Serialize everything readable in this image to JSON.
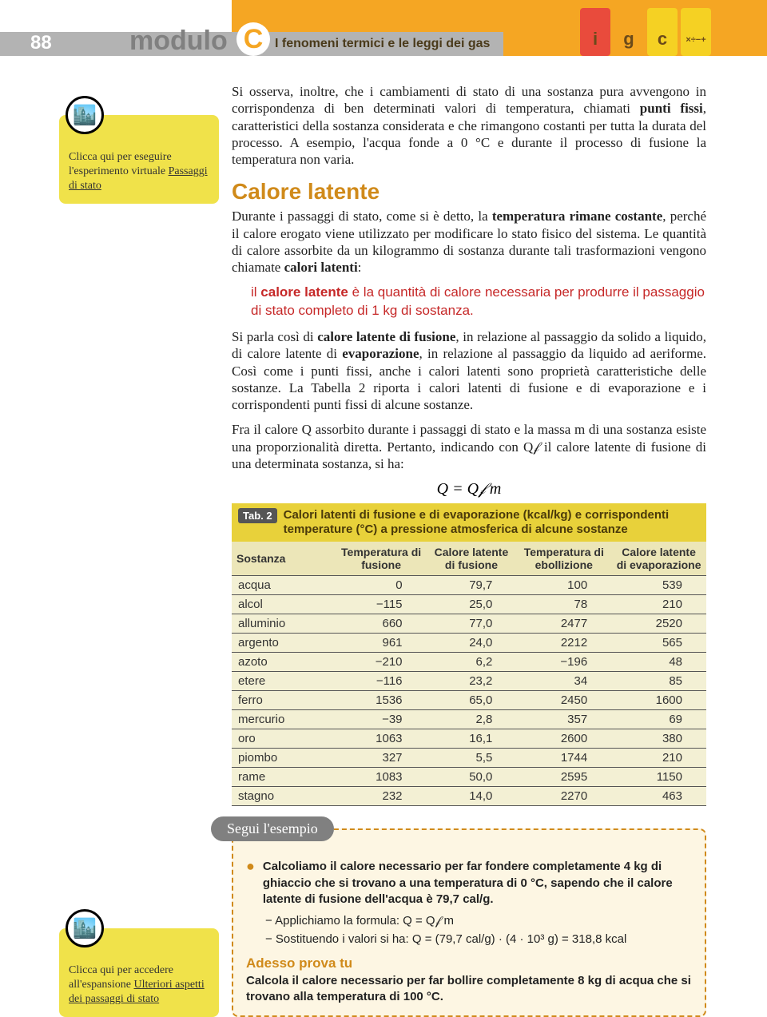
{
  "header": {
    "page_number": "88",
    "modulo": "modulo",
    "module_letter": "C",
    "title": "I fenomeni termici e le leggi dei gas",
    "icons": [
      {
        "label": "i",
        "bg": "#e94b3c"
      },
      {
        "label": "g",
        "bg": "#f5a623"
      },
      {
        "label": "c",
        "bg": "#f5d123"
      },
      {
        "label": "×÷−+",
        "bg": "#f5d123"
      }
    ]
  },
  "sidebar": {
    "box1": {
      "intro": "Clicca qui per eseguire l'esperimento virtuale",
      "link": "Passaggi di stato"
    },
    "box2": {
      "intro": "Clicca qui per accedere all'espansione",
      "link": "Ulteriori aspetti dei passaggi di stato"
    }
  },
  "body": {
    "para1_a": "Si osserva, inoltre, che i cambiamenti di stato di una sostanza pura avvengono in corrispondenza di ben determinati valori di temperatura, chiamati ",
    "para1_b": "punti fissi",
    "para1_c": ", caratteristici della sostanza considerata e che rimangono costanti per tutta la durata del processo. A esempio, l'acqua fonde a 0 °C e durante il processo di fusione la temperatura non varia.",
    "h2": "Calore latente",
    "para2_a": "Durante i passaggi di stato, come si è detto, la ",
    "para2_b": "temperatura rimane costante",
    "para2_c": ", perché il calore erogato viene utilizzato per modificare lo stato fisico del sistema. Le quantità di calore assorbite da un kilogrammo di sostanza durante tali trasformazioni vengono chiamate ",
    "para2_d": "calori latenti",
    "para2_e": ":",
    "def_lead": "il ",
    "def_term": "calore latente",
    "def_rest": " è la quantità di calore necessaria per produrre il passaggio di stato completo di 1 kg di sostanza.",
    "para3_a": "Si parla così di ",
    "para3_b": "calore latente di fusione",
    "para3_c": ", in relazione al passaggio da solido a liquido, di calore latente di ",
    "para3_d": "evaporazione",
    "para3_e": ", in relazione al passaggio da liquido ad aeriforme. Così come i punti fissi, anche i calori latenti sono proprietà caratteristiche delle sostanze. La Tabella 2 riporta i calori latenti di fusione e di evaporazione e i corrispondenti punti fissi di alcune sostanze.",
    "para4": "Fra il calore Q assorbito durante i passaggi di stato e la massa m di una sostanza esiste una proporzionalità diretta. Pertanto, indicando con Q𝒻 il calore latente di fusione di una determinata sostanza, si ha:",
    "formula": "Q = Q𝒻 m"
  },
  "table": {
    "badge": "Tab. 2",
    "title": "Calori latenti di fusione e di evaporazione (kcal/kg) e corrispondenti temperature (°C) a pressione atmosferica di alcune sostanze",
    "columns": [
      "Sostanza",
      "Temperatura di fusione",
      "Calore latente di fusione",
      "Temperatura di ebollizione",
      "Calore latente di evaporazione"
    ],
    "col_widths": [
      "22%",
      "19%",
      "19%",
      "20%",
      "20%"
    ],
    "rows": [
      [
        "acqua",
        "0",
        "79,7",
        "100",
        "539"
      ],
      [
        "alcol",
        "−115",
        "25,0",
        "78",
        "210"
      ],
      [
        "alluminio",
        "660",
        "77,0",
        "2477",
        "2520"
      ],
      [
        "argento",
        "961",
        "24,0",
        "2212",
        "565"
      ],
      [
        "azoto",
        "−210",
        "6,2",
        "−196",
        "48"
      ],
      [
        "etere",
        "−116",
        "23,2",
        "34",
        "85"
      ],
      [
        "ferro",
        "1536",
        "65,0",
        "2450",
        "1600"
      ],
      [
        "mercurio",
        "−39",
        "2,8",
        "357",
        "69"
      ],
      [
        "oro",
        "1063",
        "16,1",
        "2600",
        "380"
      ],
      [
        "piombo",
        "327",
        "5,5",
        "1744",
        "210"
      ],
      [
        "rame",
        "1083",
        "50,0",
        "2595",
        "1150"
      ],
      [
        "stagno",
        "232",
        "14,0",
        "2270",
        "463"
      ]
    ]
  },
  "example": {
    "tab": "Segui l'esempio",
    "bullet": "Calcoliamo il calore necessario per far fondere completamente 4 kg di ghiaccio che si trovano a una temperatura di 0 °C, sapendo che il calore latente di fusione dell'acqua è 79,7 cal/g.",
    "step1": "− Applichiamo la formula: Q = Q𝒻 m",
    "step2": "− Sostituendo i valori si ha: Q = (79,7 cal/g) · (4 · 10³ g) = 318,8 kcal",
    "adesso_title": "Adesso prova tu",
    "adesso_body": "Calcola il calore necessario per far bollire completamente 8 kg di acqua che si trovano alla temperatura di 100 °C."
  }
}
